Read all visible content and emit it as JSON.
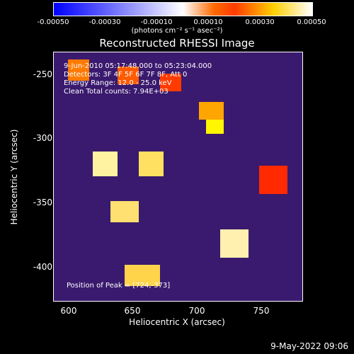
{
  "colorbar": {
    "ticks": [
      "-0.00050",
      "-0.00030",
      "-0.00010",
      "0.00010",
      "0.00030",
      "0.00050"
    ],
    "units": "(photons cm⁻² s⁻¹ asec⁻²)"
  },
  "title": "Reconstructed RHESSI Image",
  "info": {
    "line1": "9-Jun-2010 05:17:48.000 to 05:23:04.000",
    "line2": "Detectors: 3F 4F 5F 6F 7F 8F, Att 0",
    "line3": "Energy Range: 12.0 - 25.0 keV",
    "line4": "Clean    Total counts: 7.94E+03"
  },
  "peak": "Position of Peak = [724,-373]",
  "axes": {
    "x_label": "Heliocentric X (arcsec)",
    "y_label": "Heliocentric Y (arcsec)",
    "x_ticks": [
      "600",
      "650",
      "700",
      "750"
    ],
    "y_ticks": [
      "-250",
      "-300",
      "-350",
      "-400"
    ]
  },
  "timestamp": "9-May-2022 09:06"
}
